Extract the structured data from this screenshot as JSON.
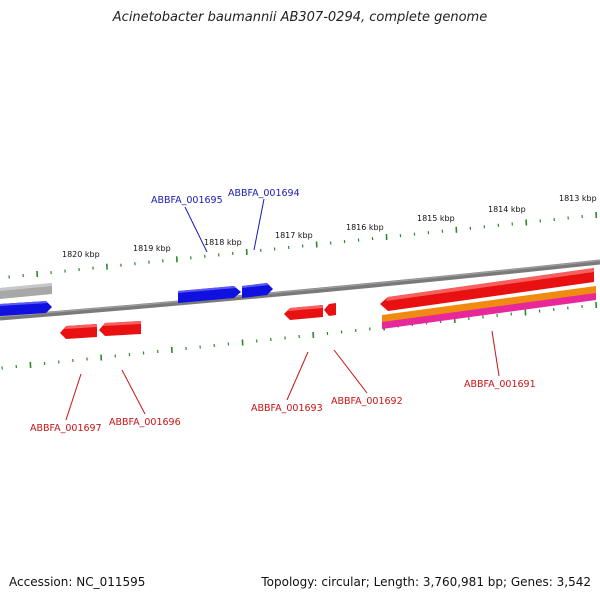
{
  "title": "Acinetobacter baumannii AB307-0294, complete genome",
  "footer": {
    "accession": "Accession: NC_011595",
    "stats": "Topology: circular; Length: 3,760,981 bp; Genes: 3,542"
  },
  "scale_labels": [
    "1820 kbp",
    "1819 kbp",
    "1818 kbp",
    "1817 kbp",
    "1816 kbp",
    "1815 kbp",
    "1814 kbp",
    "1813 kbp"
  ],
  "genes_plus": [
    "ABBFA_001695",
    "ABBFA_001694"
  ],
  "genes_minus": [
    "ABBFA_001697",
    "ABBFA_001696",
    "ABBFA_001693",
    "ABBFA_001692",
    "ABBFA_001691"
  ],
  "colors": {
    "forward_cds": "#1010e0",
    "reverse_cds": "#e81010",
    "forward_label": "#1a1ab4",
    "reverse_label": "#c81414",
    "ticks": "#2a8a2a",
    "backbone": "#7a7a7a",
    "grey_feature": "#a8a8a8",
    "orange_feature": "#f08a10",
    "pink_feature": "#e8289a"
  }
}
